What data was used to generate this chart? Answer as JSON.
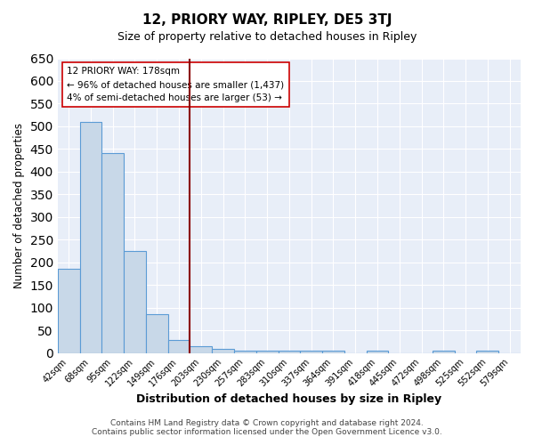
{
  "title": "12, PRIORY WAY, RIPLEY, DE5 3TJ",
  "subtitle": "Size of property relative to detached houses in Ripley",
  "xlabel": "Distribution of detached houses by size in Ripley",
  "ylabel": "Number of detached properties",
  "footer_line1": "Contains HM Land Registry data © Crown copyright and database right 2024.",
  "footer_line2": "Contains public sector information licensed under the Open Government Licence v3.0.",
  "annotation_line1": "12 PRIORY WAY: 178sqm",
  "annotation_line2": "← 96% of detached houses are smaller (1,437)",
  "annotation_line3": "4% of semi-detached houses are larger (53) →",
  "bar_color": "#c8d8e8",
  "bar_edge_color": "#5b9bd5",
  "vline_color": "#8b0000",
  "vline_x": 5.5,
  "background_color": "#e8eef8",
  "categories": [
    "42sqm",
    "68sqm",
    "95sqm",
    "122sqm",
    "149sqm",
    "176sqm",
    "203sqm",
    "230sqm",
    "257sqm",
    "283sqm",
    "310sqm",
    "337sqm",
    "364sqm",
    "391sqm",
    "418sqm",
    "445sqm",
    "472sqm",
    "498sqm",
    "525sqm",
    "552sqm",
    "579sqm"
  ],
  "values": [
    185,
    510,
    440,
    225,
    85,
    28,
    15,
    9,
    6,
    6,
    6,
    6,
    6,
    0,
    6,
    0,
    0,
    6,
    0,
    6,
    0
  ],
  "ylim": [
    0,
    650
  ],
  "yticks": [
    0,
    50,
    100,
    150,
    200,
    250,
    300,
    350,
    400,
    450,
    500,
    550,
    600,
    650
  ]
}
